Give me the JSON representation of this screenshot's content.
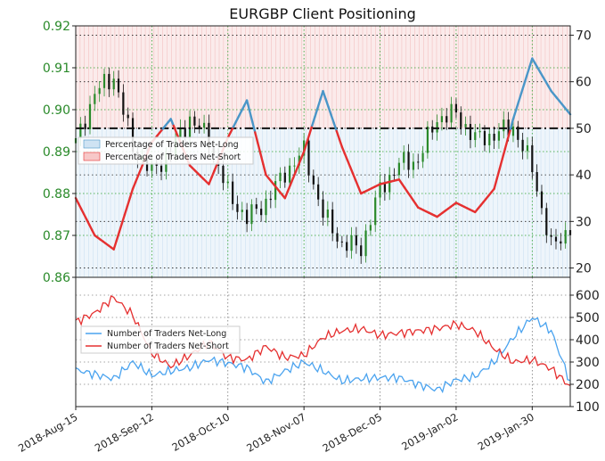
{
  "chart_data": [
    {
      "type": "line",
      "title": "EURGBP Client Positioning",
      "x_ticks": [
        "2018-Aug-15",
        "2018-Sep-12",
        "2018-Oct-10",
        "2018-Nov-07",
        "2018-Dec-05",
        "2019-Jan-02",
        "2019-Jan-30"
      ],
      "x_range": [
        "2018-Aug-15",
        "2019-Feb-12"
      ],
      "price_axis": {
        "side": "left",
        "ticks": [
          "0.86",
          "0.87",
          "0.88",
          "0.89",
          "0.90",
          "0.91",
          "0.92"
        ],
        "ylim": [
          0.86,
          0.92
        ]
      },
      "percent_axis": {
        "side": "right",
        "ticks": [
          "20",
          "30",
          "40",
          "50",
          "60",
          "70"
        ],
        "ylim": [
          18,
          72
        ],
        "reference_line": 50
      },
      "grid": true,
      "legend": {
        "placement": "left",
        "entries": [
          "Percentage of Traders Net-Long",
          "Percentage of Traders Net-Short"
        ]
      },
      "price_series": {
        "name": "EURGBP",
        "x_days": [
          0,
          7,
          14,
          21,
          28,
          35,
          42,
          49,
          56,
          63,
          70,
          77,
          84,
          91,
          98,
          105,
          112,
          119,
          126,
          133,
          140,
          147,
          154,
          161,
          168,
          175,
          182
        ],
        "values": [
          0.892,
          0.904,
          0.908,
          0.891,
          0.885,
          0.89,
          0.898,
          0.893,
          0.88,
          0.874,
          0.878,
          0.885,
          0.89,
          0.875,
          0.868,
          0.867,
          0.881,
          0.887,
          0.888,
          0.898,
          0.899,
          0.893,
          0.894,
          0.896,
          0.886,
          0.867,
          0.872
        ]
      },
      "percent_series": {
        "name": "Percentage of Traders Net-Long",
        "x_days": [
          0,
          7,
          14,
          21,
          28,
          35,
          42,
          49,
          56,
          63,
          70,
          77,
          84,
          91,
          98,
          105,
          112,
          119,
          126,
          133,
          140,
          147,
          154,
          161,
          168,
          175,
          182
        ],
        "values": [
          35,
          27,
          24,
          37,
          47,
          52,
          42,
          38,
          48,
          56,
          40,
          35,
          45,
          58,
          46,
          36,
          38,
          39,
          33,
          31,
          34,
          32,
          37,
          52,
          65,
          58,
          53
        ]
      },
      "colors": {
        "net_long": "#4a96c8",
        "net_short": "#e53030",
        "price": "#111111",
        "price_up": "#2a8a2a",
        "long_zone": "#cfe3f3",
        "short_zone": "#f7d3d3"
      }
    },
    {
      "type": "line",
      "x_range": [
        "2018-Aug-15",
        "2019-Feb-12"
      ],
      "right_axis": {
        "ticks": [
          "100",
          "200",
          "300",
          "400",
          "500",
          "600"
        ],
        "ylim": [
          100,
          680
        ]
      },
      "grid": true,
      "legend": {
        "placement": "left",
        "entries": [
          "Number of Traders Net-Long",
          "Number of Traders Net-Short"
        ]
      },
      "series": [
        {
          "name": "Number of Traders Net-Long",
          "x_days": [
            0,
            7,
            14,
            21,
            28,
            35,
            42,
            49,
            56,
            63,
            70,
            77,
            84,
            91,
            98,
            105,
            112,
            119,
            126,
            133,
            140,
            147,
            154,
            161,
            168,
            175,
            182
          ],
          "values": [
            265,
            245,
            225,
            300,
            240,
            260,
            275,
            310,
            295,
            275,
            210,
            260,
            300,
            260,
            215,
            225,
            230,
            230,
            200,
            175,
            220,
            235,
            300,
            410,
            500,
            440,
            210
          ]
        },
        {
          "name": "Number of Traders Net-Short",
          "x_days": [
            0,
            7,
            14,
            21,
            28,
            35,
            42,
            49,
            56,
            63,
            70,
            77,
            84,
            91,
            98,
            105,
            112,
            119,
            126,
            133,
            140,
            147,
            154,
            161,
            168,
            175,
            182
          ],
          "values": [
            480,
            520,
            590,
            510,
            340,
            280,
            330,
            390,
            320,
            310,
            370,
            320,
            330,
            410,
            440,
            450,
            420,
            430,
            440,
            450,
            470,
            440,
            360,
            300,
            310,
            270,
            190
          ]
        }
      ]
    }
  ]
}
